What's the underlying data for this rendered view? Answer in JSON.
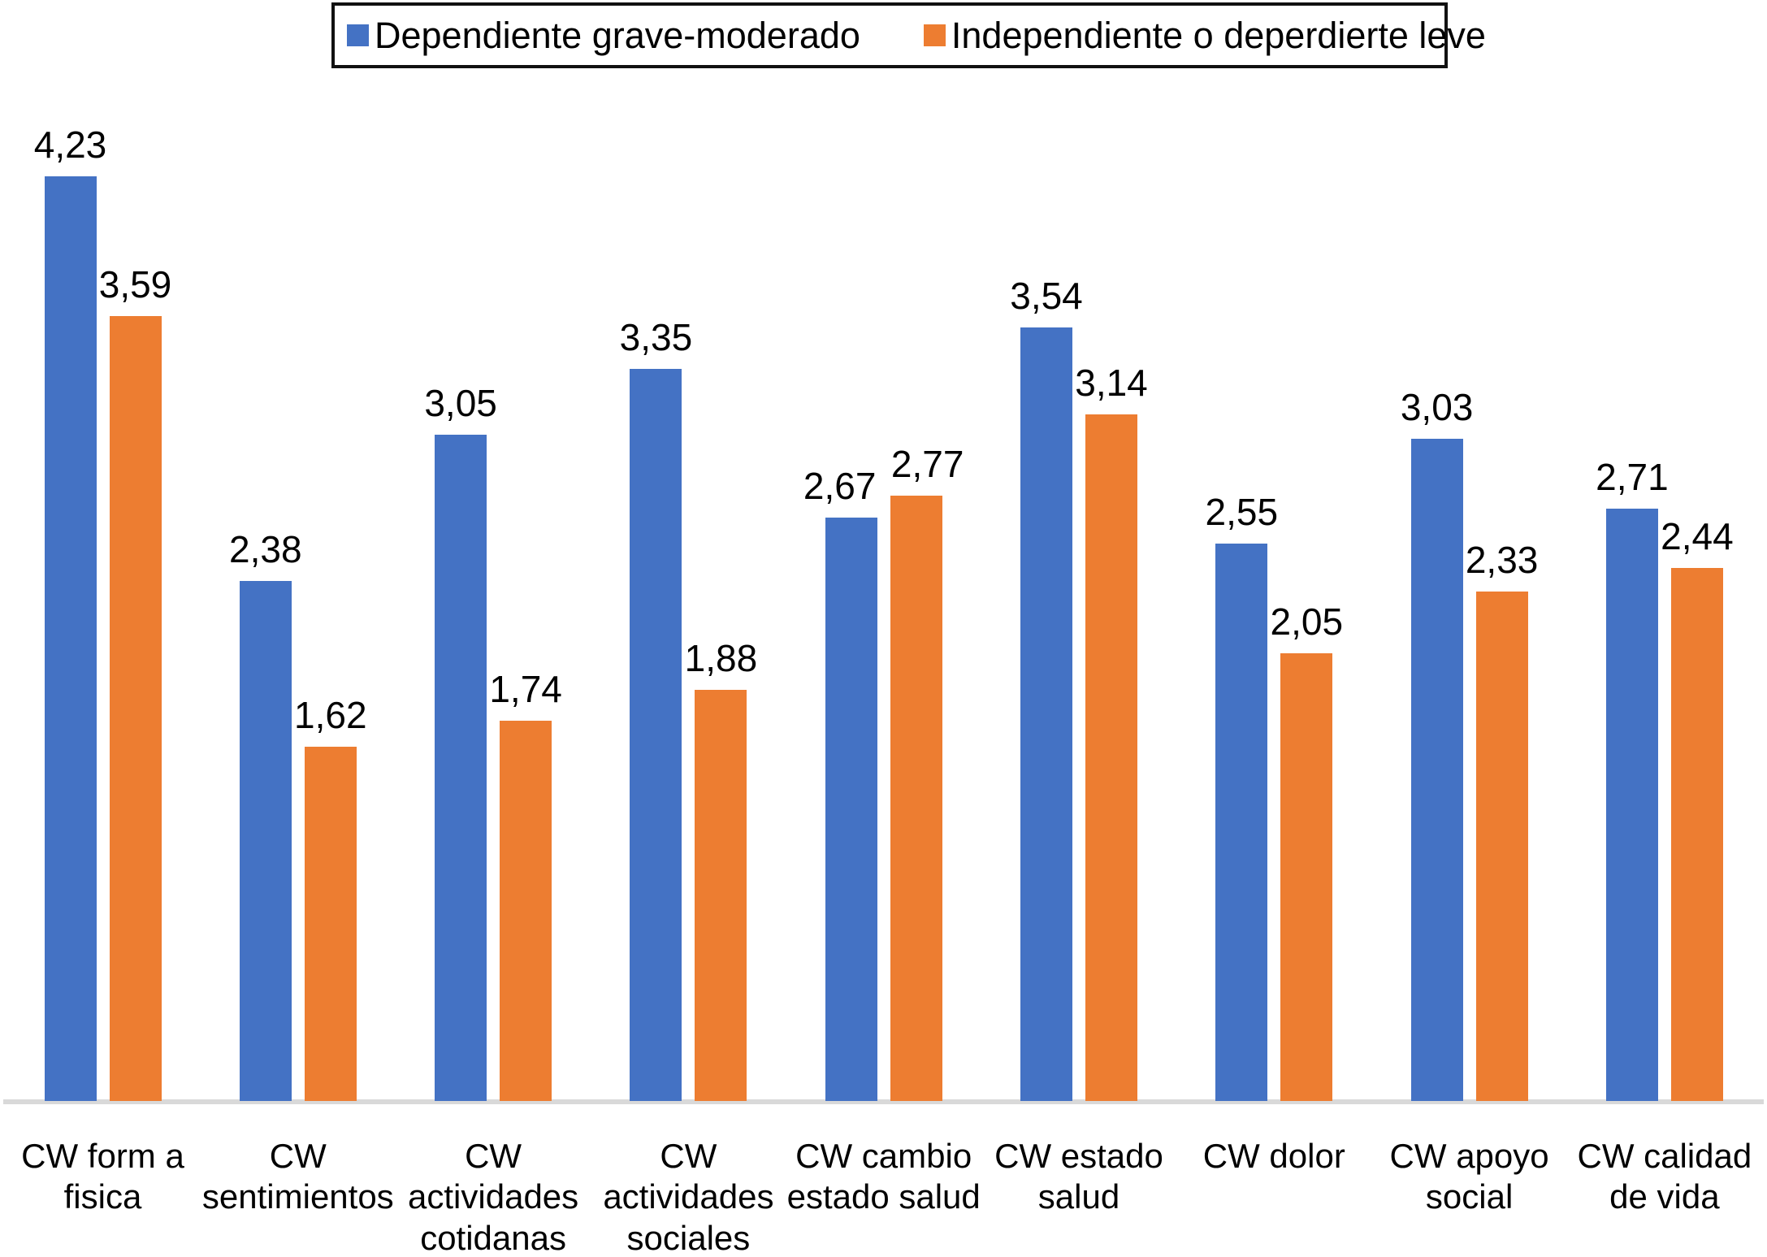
{
  "legend": {
    "items": [
      {
        "label": "Dependiente grave-moderado",
        "color": "#4472C4"
      },
      {
        "label": "Independiente o deperdierte leve",
        "color": "#ED7D31"
      }
    ]
  },
  "chart_data": {
    "type": "bar",
    "title": "",
    "xlabel": "",
    "ylabel": "",
    "categories": [
      "CW form a fisica",
      "CW sentimientos",
      "CW actividades cotidanas",
      "CW actividades sociales",
      "CW cambio estado salud",
      "CW estado salud",
      "CW dolor",
      "CW apoyo social",
      "CW calidad de vida"
    ],
    "series": [
      {
        "name": "Dependiente grave-moderado",
        "color": "#4472C4",
        "values": [
          4.23,
          2.38,
          3.05,
          3.35,
          2.67,
          3.54,
          2.55,
          3.03,
          2.71
        ],
        "labels": [
          "4,23",
          "2,38",
          "3,05",
          "3,35",
          "2,67",
          "3,54",
          "2,55",
          "3,03",
          "2,71"
        ]
      },
      {
        "name": "Independiente o deperdierte leve",
        "color": "#ED7D31",
        "values": [
          3.59,
          1.62,
          1.74,
          1.88,
          2.77,
          3.14,
          2.05,
          2.33,
          2.44
        ],
        "labels": [
          "3,59",
          "1,62",
          "1,74",
          "1,88",
          "2,77",
          "3,14",
          "2,05",
          "2,33",
          "2,44"
        ]
      }
    ],
    "ylim": [
      0,
      4.6
    ],
    "grid": false,
    "y_axis_shown": false,
    "legend_position": "top",
    "value_labels_shown": true,
    "decimal_separator": ","
  },
  "colors": {
    "background": "#FFFFFF",
    "axis_line": "#D9D9D9",
    "text": "#000000",
    "legend_border": "#111111"
  }
}
